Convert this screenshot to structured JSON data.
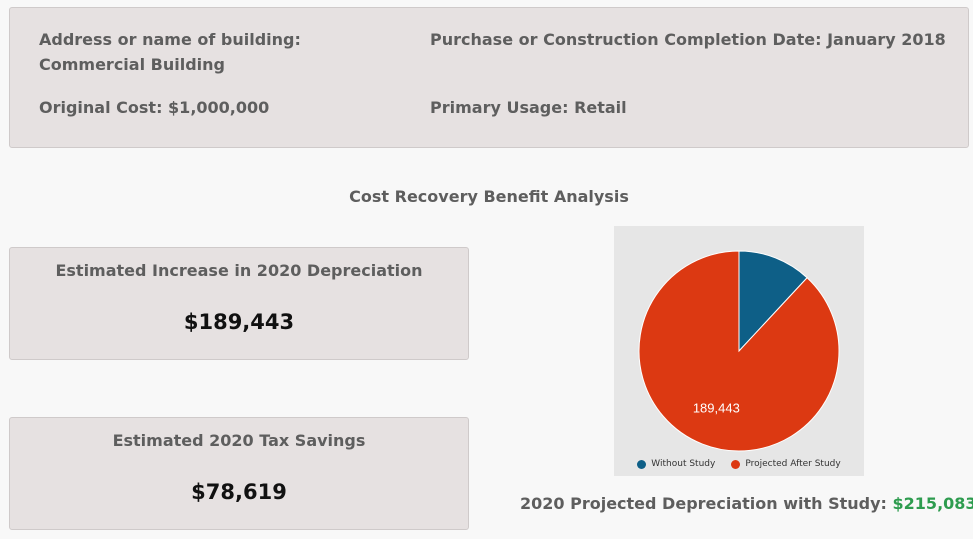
{
  "building": {
    "address_label": "Address or name of building:",
    "address_value": "Commercial Building",
    "purchase_label": "Purchase or Construction Completion Date:",
    "purchase_value": "January 2018",
    "cost_label": "Original Cost:",
    "cost_value": "$1,000,000",
    "usage_label": "Primary Usage:",
    "usage_value": "Retail"
  },
  "analysis": {
    "title": "Cost Recovery Benefit Analysis",
    "increase_label": "Estimated Increase in 2020 Depreciation",
    "increase_value": "$189,443",
    "savings_label": "Estimated 2020 Tax Savings",
    "savings_value": "$78,619",
    "projected_label": "2020 Projected Depreciation with Study:",
    "projected_value": "$215,083"
  },
  "colors": {
    "without_study": "#0e5f87",
    "projected_after_study": "#dc3912",
    "highlight": "#2e9c4f"
  },
  "chart_data": {
    "type": "pie",
    "slices": [
      {
        "label": "Without Study",
        "value": 25640
      },
      {
        "label": "Projected After Study",
        "value": 189443,
        "data_label": "189,443"
      }
    ],
    "legend_position": "bottom"
  }
}
